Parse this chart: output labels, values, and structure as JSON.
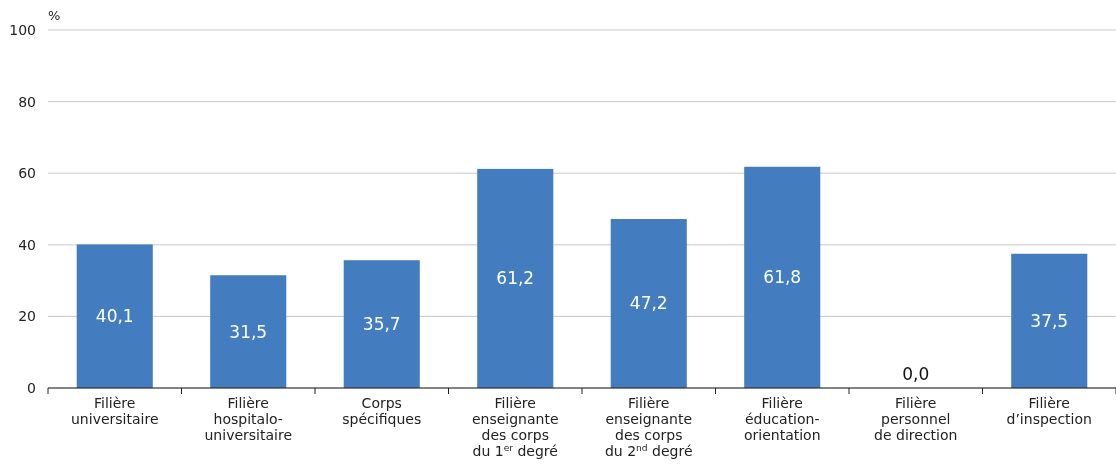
{
  "chart_data": {
    "type": "bar",
    "ylabel": "%",
    "categories": [
      "Filière\nuniversitaire",
      "Filière\nhospitalo-\nuniversitaire",
      "Corps\nspécifiques",
      "Filière\nenseignante\ndes corps\ndu 1$^{er}$ degré",
      "Filière\nenseignante\ndes corps\ndu 2$^{nd}$ degré",
      "Filière\néducation-\norientation",
      "Filière\npersonnel\nde direction",
      "Filière\nd’inspection"
    ],
    "values": [
      40.1,
      31.5,
      35.7,
      61.2,
      47.2,
      61.8,
      0.0,
      37.5
    ],
    "value_labels": [
      "40,1",
      "31,5",
      "35,7",
      "61,2",
      "47,2",
      "61,8",
      "0,0",
      "37,5"
    ],
    "color": "#437dc0",
    "ylim": [
      0,
      100
    ],
    "yticks": [
      0,
      20,
      40,
      60,
      80,
      100
    ],
    "grid": "y"
  }
}
